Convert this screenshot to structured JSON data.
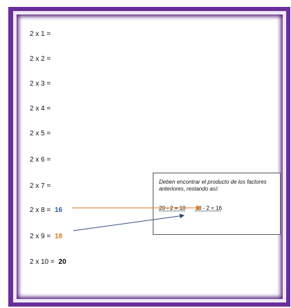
{
  "table": {
    "rows": [
      {
        "expr": "2 x 1 =",
        "result": ""
      },
      {
        "expr": "2 x 2 =",
        "result": ""
      },
      {
        "expr": "2 x 3 =",
        "result": ""
      },
      {
        "expr": "2 x 4 =",
        "result": ""
      },
      {
        "expr": "2 x 5 =",
        "result": ""
      },
      {
        "expr": "2 x 6 =",
        "result": ""
      },
      {
        "expr": "2 x 7 =",
        "result": ""
      },
      {
        "expr": "2 x 8 =",
        "result": "16"
      },
      {
        "expr": "2 x 9 =",
        "result": "18"
      },
      {
        "expr": "2 x 10 =",
        "result": "20"
      }
    ]
  },
  "note": {
    "instruction": "Deben encontrar el producto de los factores anteriores,  restando así:",
    "op1": "20 - 2 = 18",
    "op2": "18 - 2 = 16"
  },
  "colors": {
    "frame": "#6a2f9a",
    "result_blue": "#2f5aa0",
    "result_orange": "#e0781c",
    "arrow_orange": "#e0781c",
    "arrow_blue": "#2f4f7a"
  }
}
